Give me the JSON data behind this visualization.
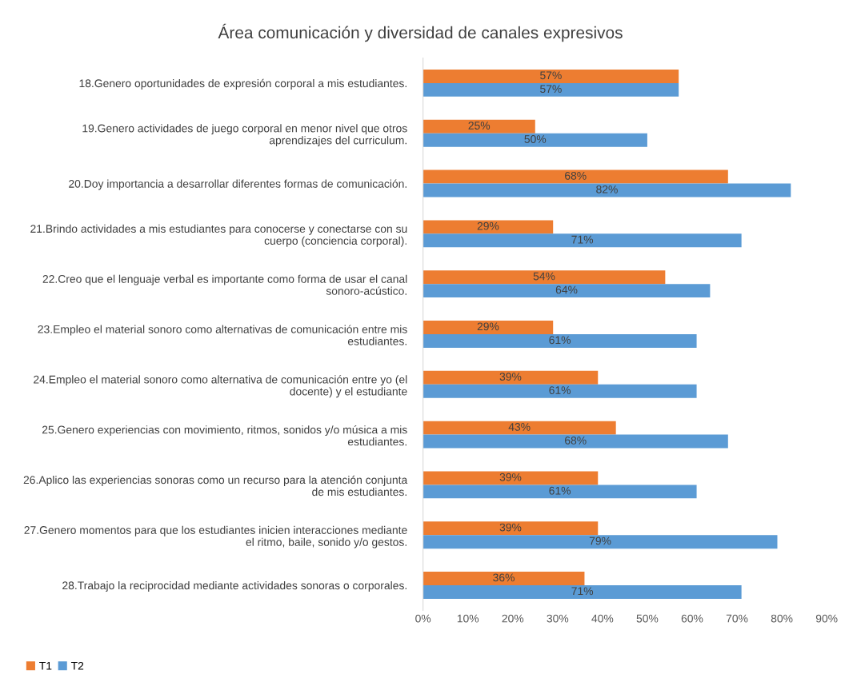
{
  "chart_data": {
    "type": "bar",
    "orientation": "horizontal",
    "title": "Área comunicación y diversidad de canales expresivos",
    "categories": [
      "18.Genero oportunidades de expresión corporal a mis estudiantes.",
      "19.Genero actividades de juego corporal en menor nivel que otros\naprendizajes del curriculum.",
      "20.Doy importancia a desarrollar diferentes formas de comunicación.",
      "21.Brindo actividades a mis estudiantes para conocerse y conectarse con su\ncuerpo (conciencia corporal).",
      "22.Creo que el lenguaje verbal es importante como forma de usar el canal\nsonoro-acústico.",
      "23.Empleo el material sonoro como alternativas de comunicación entre mis\nestudiantes.",
      "24.Empleo el material sonoro como alternativa de comunicación entre yo (el\ndocente) y el estudiante",
      "25.Genero experiencias con movimiento, ritmos, sonidos y/o música a mis\nestudiantes.",
      "26.Aplico las experiencias sonoras como un recurso para la atención conjunta\nde mis estudiantes.",
      "27.Genero momentos para que los estudiantes inicien interacciones mediante\nel ritmo, baile, sonido y/o gestos.",
      "28.Trabajo la reciprocidad mediante actividades sonoras o corporales."
    ],
    "series": [
      {
        "name": "T1",
        "color": "#ed7d31",
        "values": [
          57,
          25,
          68,
          29,
          54,
          29,
          39,
          43,
          39,
          39,
          36
        ],
        "value_labels": [
          "57%",
          "25%",
          "68%",
          "29%",
          "54%",
          "29%",
          "39%",
          "43%",
          "39%",
          "39%",
          "36%"
        ]
      },
      {
        "name": "T2",
        "color": "#5b9bd5",
        "values": [
          57,
          50,
          82,
          71,
          64,
          61,
          61,
          68,
          61,
          79,
          71
        ],
        "value_labels": [
          "57%",
          "50%",
          "82%",
          "71%",
          "64%",
          "61%",
          "61%",
          "68%",
          "61%",
          "79%",
          "71%"
        ]
      }
    ],
    "xlim": [
      0,
      90
    ],
    "xticks": [
      {
        "value": 0,
        "label": "0%"
      },
      {
        "value": 10,
        "label": "10%"
      },
      {
        "value": 20,
        "label": "20%"
      },
      {
        "value": 30,
        "label": "30%"
      },
      {
        "value": 40,
        "label": "40%"
      },
      {
        "value": 50,
        "label": "50%"
      },
      {
        "value": 60,
        "label": "60%"
      },
      {
        "value": 70,
        "label": "70%"
      },
      {
        "value": 80,
        "label": "80%"
      },
      {
        "value": 90,
        "label": "90%"
      }
    ],
    "grid": false,
    "legend": "bottom left"
  }
}
